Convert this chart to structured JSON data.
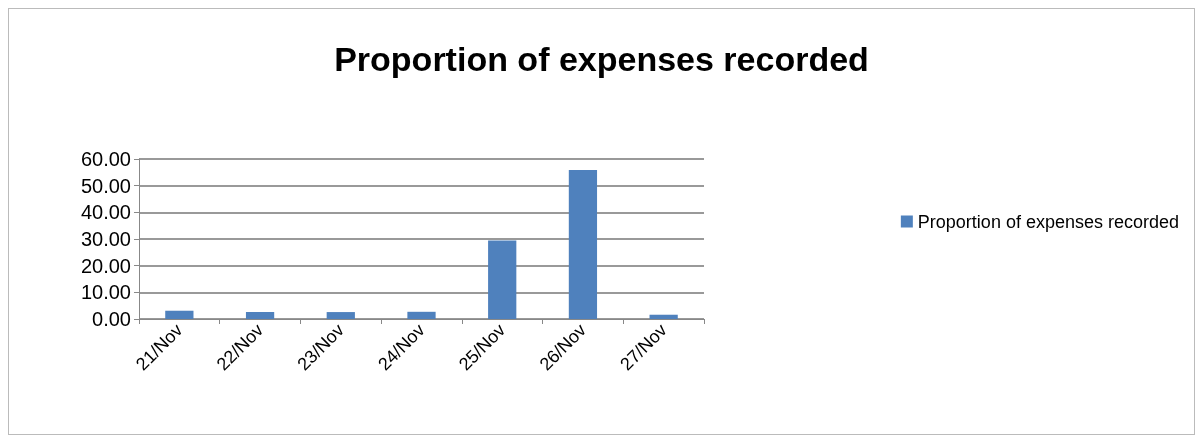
{
  "chart_data": {
    "type": "bar",
    "title": "Proportion of expenses recorded",
    "categories": [
      "21/Nov",
      "22/Nov",
      "23/Nov",
      "24/Nov",
      "25/Nov",
      "26/Nov",
      "27/Nov"
    ],
    "series": [
      {
        "name": "Proportion of expenses recorded",
        "color": "#4f81bd",
        "values": [
          3.1,
          2.6,
          2.6,
          2.7,
          29.4,
          55.9,
          1.6
        ]
      }
    ],
    "ylim": [
      0,
      60
    ],
    "yticks": [
      {
        "value": 0,
        "label": "0.00"
      },
      {
        "value": 10,
        "label": "10.00"
      },
      {
        "value": 20,
        "label": "20.00"
      },
      {
        "value": 30,
        "label": "30.00"
      },
      {
        "value": 40,
        "label": "40.00"
      },
      {
        "value": 50,
        "label": "50.00"
      },
      {
        "value": 60,
        "label": "60.00"
      }
    ],
    "grid": "y",
    "legend": "right"
  }
}
